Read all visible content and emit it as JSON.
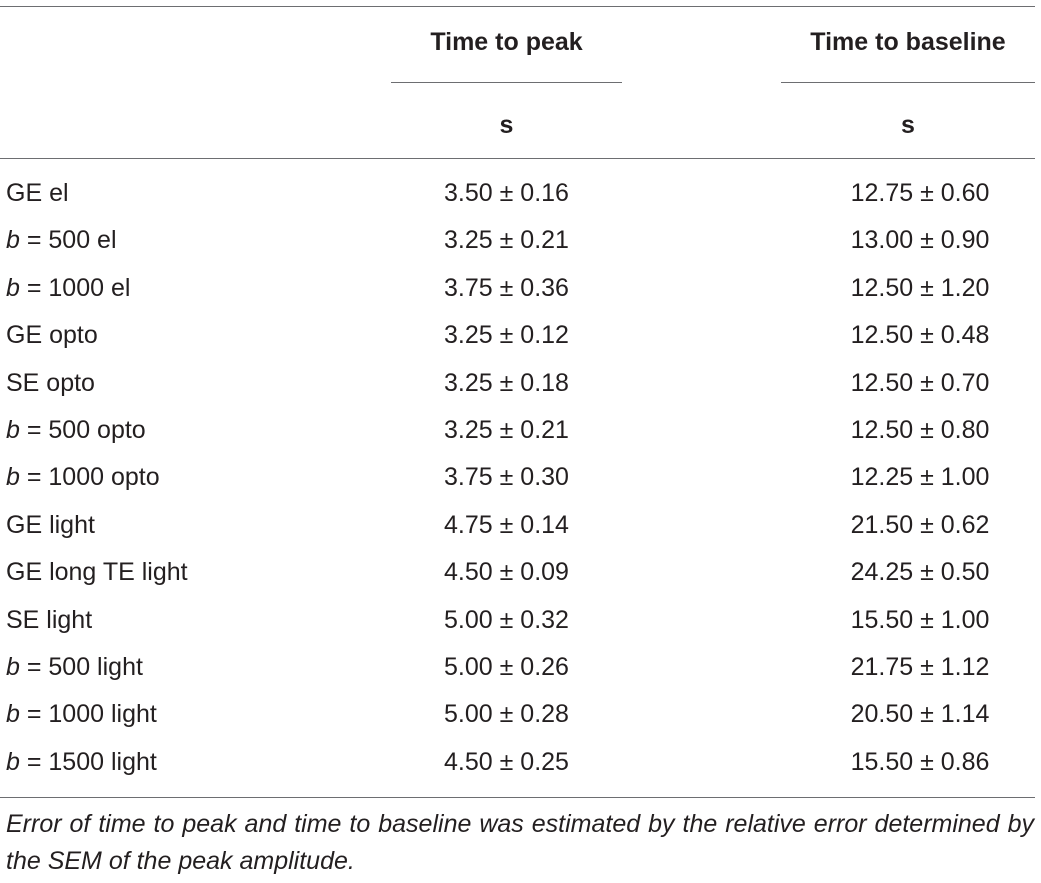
{
  "header": {
    "time_to_peak": "Time to peak",
    "time_to_baseline": "Time to baseline",
    "unit_peak": "s",
    "unit_baseline": "s"
  },
  "rows": [
    {
      "prefix": "",
      "label": "GE el",
      "peak": "3.50 ± 0.16",
      "baseline": "12.75 ± 0.60"
    },
    {
      "prefix": "b",
      "label": " = 500 el",
      "peak": "3.25 ± 0.21",
      "baseline": "13.00 ± 0.90"
    },
    {
      "prefix": "b",
      "label": " = 1000 el",
      "peak": "3.75 ± 0.36",
      "baseline": "12.50 ± 1.20"
    },
    {
      "prefix": "",
      "label": "GE opto",
      "peak": "3.25 ± 0.12",
      "baseline": "12.50 ± 0.48"
    },
    {
      "prefix": "",
      "label": "SE opto",
      "peak": "3.25 ± 0.18",
      "baseline": "12.50 ± 0.70"
    },
    {
      "prefix": "b",
      "label": " = 500 opto",
      "peak": "3.25 ± 0.21",
      "baseline": "12.50 ± 0.80"
    },
    {
      "prefix": "b",
      "label": " = 1000 opto",
      "peak": "3.75 ± 0.30",
      "baseline": "12.25 ± 1.00"
    },
    {
      "prefix": "",
      "label": "GE light",
      "peak": "4.75 ± 0.14",
      "baseline": "21.50 ± 0.62"
    },
    {
      "prefix": "",
      "label": "GE long TE light",
      "peak": "4.50 ± 0.09",
      "baseline": "24.25 ± 0.50"
    },
    {
      "prefix": "",
      "label": "SE light",
      "peak": "5.00 ± 0.32",
      "baseline": "15.50 ± 1.00"
    },
    {
      "prefix": "b",
      "label": " = 500 light",
      "peak": "5.00 ± 0.26",
      "baseline": "21.75 ± 1.12"
    },
    {
      "prefix": "b",
      "label": " = 1000 light",
      "peak": "5.00 ± 0.28",
      "baseline": "20.50 ± 1.14"
    },
    {
      "prefix": "b",
      "label": " = 1500 light",
      "peak": "4.50 ± 0.25",
      "baseline": "15.50 ± 0.86"
    }
  ],
  "footnote": "Error of time to peak and time to baseline was estimated by the relative error determined by the SEM of the peak amplitude."
}
